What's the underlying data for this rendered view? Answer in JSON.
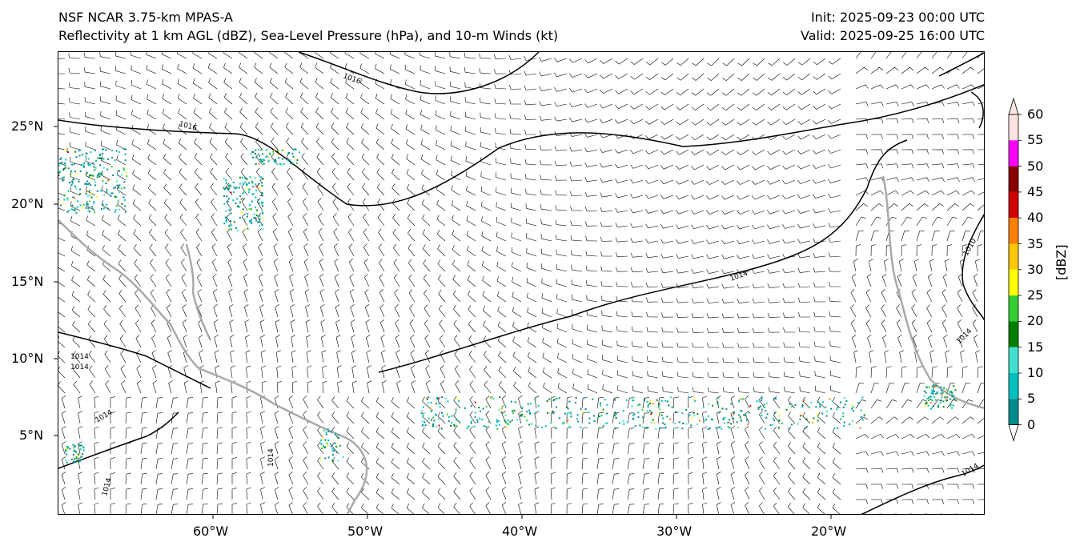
{
  "header": {
    "left_line1": "NSF NCAR 3.75-km MPAS-A",
    "left_line2": "Reflectivity at 1 km AGL (dBZ), Sea-Level Pressure (hPa), and 10-m Winds (kt)",
    "right_line1": "Init: 2025-09-23 00:00 UTC",
    "right_line2": "Valid: 2025-09-25 16:00 UTC"
  },
  "axes": {
    "x_ticks": [
      "60°W",
      "50°W",
      "40°W",
      "30°W",
      "20°W"
    ],
    "y_ticks": [
      "25°N",
      "20°N",
      "15°N",
      "10°N",
      "5°N"
    ]
  },
  "isobar_labels": [
    "1016",
    "1016",
    "1014",
    "1014",
    "1014",
    "1014",
    "1010",
    "1014",
    "1014",
    "1014",
    "1014"
  ],
  "colorbar": {
    "title": "[dBZ]",
    "ticks": [
      "60",
      "55",
      "50",
      "45",
      "40",
      "35",
      "30",
      "25",
      "20",
      "15",
      "10",
      "5",
      "0"
    ],
    "colors": [
      "#ffe4e1",
      "#ff00ff",
      "#8b0000",
      "#d00000",
      "#ff8000",
      "#ffc800",
      "#ffff00",
      "#32cd32",
      "#008000",
      "#40e0d0",
      "#00bfbf",
      "#008b8b",
      "#ffffff"
    ]
  },
  "colors": {
    "coast": "#a9a9a9",
    "isobar": "#000000",
    "barb": "#000000"
  }
}
